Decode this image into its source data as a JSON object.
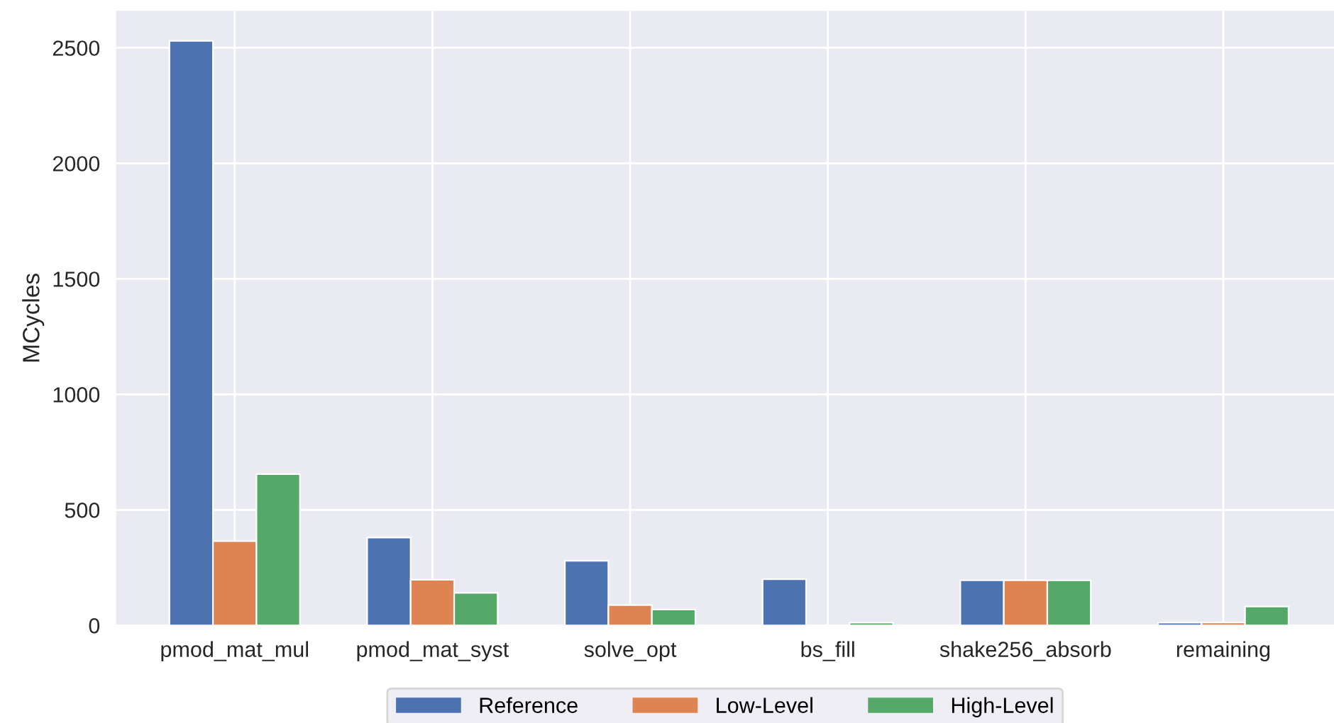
{
  "chart_data": {
    "type": "bar",
    "ylabel": "MCycles",
    "categories": [
      "pmod_mat_mul",
      "pmod_mat_syst",
      "solve_opt",
      "bs_fill",
      "shake256_absorb",
      "remaining"
    ],
    "series": [
      {
        "name": "Reference",
        "color": "#4c72b0",
        "values": [
          2530,
          380,
          280,
          200,
          195,
          12
        ]
      },
      {
        "name": "Low-Level",
        "color": "#dd8452",
        "values": [
          365,
          198,
          88,
          null,
          195,
          13
        ]
      },
      {
        "name": "High-Level",
        "color": "#55a868",
        "values": [
          655,
          141,
          69,
          12,
          195,
          82
        ]
      }
    ],
    "ylim": [
      0,
      2660
    ],
    "yticks": [
      0,
      500,
      1000,
      1500,
      2000,
      2500
    ],
    "grid": true,
    "legend": "bottom"
  }
}
